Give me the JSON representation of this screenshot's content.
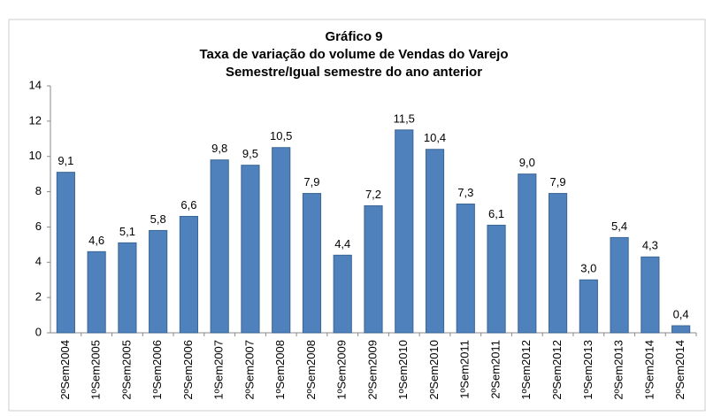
{
  "chart_data": {
    "type": "bar",
    "title": [
      "Gráfico 9",
      "Taxa de variação do volume de Vendas do Varejo",
      "Semestre/Igual semestre do ano anterior"
    ],
    "categories": [
      "2ºSem2004",
      "1ºSem2005",
      "2ºSem2005",
      "1ºSem2006",
      "2ºSem2006",
      "1ºSem2007",
      "2ºSem2007",
      "1ºSem2008",
      "2ºSem2008",
      "1ºSem2009",
      "2ºSem2009",
      "1ºSem2010",
      "2ºSem2010",
      "1ºSem2011",
      "2ºSem2011",
      "1ºSem2012",
      "2ºSem2012",
      "1ºSem2013",
      "2ºSem2013",
      "1ºSem2014",
      "2ºSem2014"
    ],
    "values": [
      9.1,
      4.6,
      5.1,
      5.8,
      6.6,
      9.8,
      9.5,
      10.5,
      7.9,
      4.4,
      7.2,
      11.5,
      10.4,
      7.3,
      6.1,
      9.0,
      7.9,
      3.0,
      5.4,
      4.3,
      0.4
    ],
    "value_labels": [
      "9,1",
      "4,6",
      "5,1",
      "5,8",
      "6,6",
      "9,8",
      "9,5",
      "10,5",
      "7,9",
      "4,4",
      "7,2",
      "11,5",
      "10,4",
      "7,3",
      "6,1",
      "9,0",
      "7,9",
      "3,0",
      "5,4",
      "4,3",
      "0,4"
    ],
    "color": "#4f81bd",
    "ylim": [
      0,
      14
    ],
    "yticks": [
      0,
      2,
      4,
      6,
      8,
      10,
      12,
      14
    ],
    "grid": false
  }
}
